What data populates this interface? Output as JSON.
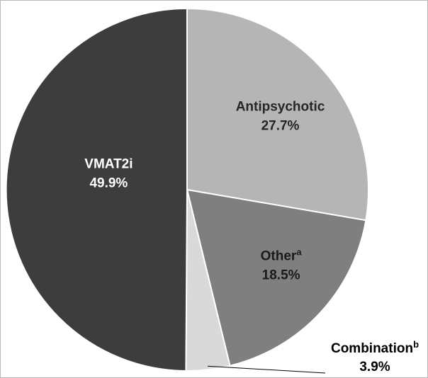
{
  "figure": {
    "background": "#ffffff"
  },
  "chart_data": {
    "type": "pie",
    "title": "",
    "legend": "none",
    "start_angle_deg": 0,
    "direction": "clockwise",
    "border_color": "#ffffff",
    "slices": [
      {
        "label": "Antipsychotic",
        "sup": "",
        "value": 27.7,
        "display": "27.7%",
        "color": "#b5b5b5",
        "text_color": "#262626",
        "external": false
      },
      {
        "label": "Other",
        "sup": "a",
        "value": 18.5,
        "display": "18.5%",
        "color": "#7f7f7f",
        "text_color": "#1a1a1a",
        "external": false
      },
      {
        "label": "Combination",
        "sup": "b",
        "value": 3.9,
        "display": "3.9%",
        "color": "#d9d9d9",
        "text_color": "#000000",
        "external": true
      },
      {
        "label": "VMAT2i",
        "sup": "",
        "value": 49.9,
        "display": "49.9%",
        "color": "#3d3d3d",
        "text_color": "#ffffff",
        "external": false
      }
    ]
  }
}
